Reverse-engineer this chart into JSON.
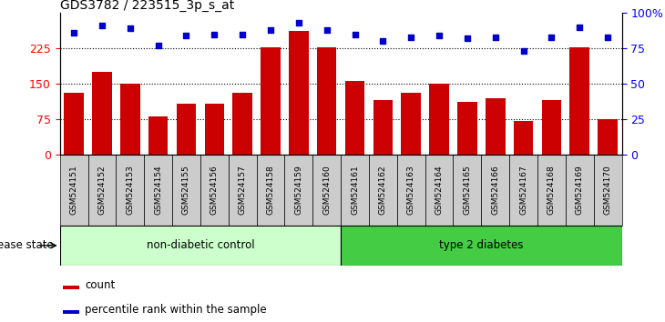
{
  "title": "GDS3782 / 223515_3p_s_at",
  "samples": [
    "GSM524151",
    "GSM524152",
    "GSM524153",
    "GSM524154",
    "GSM524155",
    "GSM524156",
    "GSM524157",
    "GSM524158",
    "GSM524159",
    "GSM524160",
    "GSM524161",
    "GSM524162",
    "GSM524163",
    "GSM524164",
    "GSM524165",
    "GSM524166",
    "GSM524167",
    "GSM524168",
    "GSM524169",
    "GSM524170"
  ],
  "counts": [
    130,
    175,
    150,
    80,
    107,
    107,
    130,
    228,
    262,
    228,
    155,
    115,
    130,
    150,
    112,
    120,
    72,
    115,
    228,
    75
  ],
  "percentiles": [
    86,
    91,
    89,
    77,
    84,
    85,
    85,
    88,
    93,
    88,
    85,
    80,
    83,
    84,
    82,
    83,
    73,
    83,
    90,
    83
  ],
  "group1_label": "non-diabetic control",
  "group2_label": "type 2 diabetes",
  "group1_count": 10,
  "group2_count": 10,
  "bar_color": "#cc0000",
  "dot_color": "#0000cc",
  "group1_bg": "#ccffcc",
  "group2_bg": "#44cc44",
  "label_bg": "#cccccc",
  "ylim_left": [
    0,
    300
  ],
  "ylim_right": [
    0,
    100
  ],
  "yticks_left": [
    0,
    75,
    150,
    225
  ],
  "yticks_right": [
    0,
    25,
    50,
    75,
    100
  ],
  "legend_count_label": "count",
  "legend_pct_label": "percentile rank within the sample",
  "disease_state_label": "disease state"
}
